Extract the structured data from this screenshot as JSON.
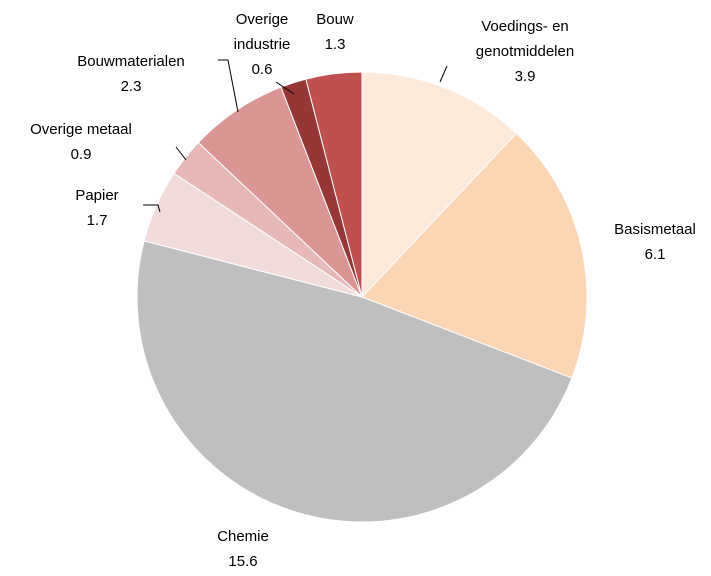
{
  "chart_data": {
    "type": "pie",
    "categories": [
      "Voedings- en genotmiddelen",
      "Basismetaal",
      "Chemie",
      "Papier",
      "Overige metaal",
      "Bouwmaterialen",
      "Overige industrie",
      "Bouw"
    ],
    "values": [
      3.9,
      6.1,
      15.6,
      1.7,
      0.9,
      2.3,
      0.6,
      1.3
    ],
    "colors": [
      "#fde9d9",
      "#fcd5b5",
      "#bfbfbf",
      "#f2dcdb",
      "#e6b9b8",
      "#d99694",
      "#953735",
      "#c0504d"
    ]
  }
}
